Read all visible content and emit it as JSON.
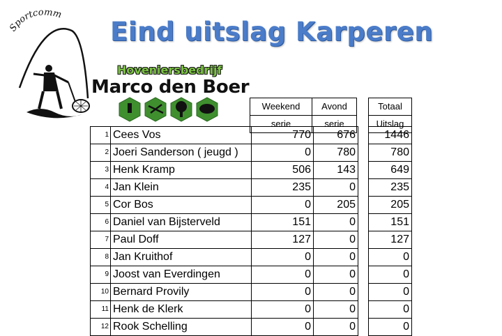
{
  "title": "Eind uitslag Karperen",
  "logo": {
    "club_text": "Sportcommissie",
    "sponsor_line1": "Hoveniersbedrijf",
    "sponsor_line2": "Marco den Boer"
  },
  "headers": {
    "weekend": [
      "Weekend",
      "serie"
    ],
    "avond": [
      "Avond",
      "serie"
    ],
    "totaal": [
      "Totaal",
      "Uitslag"
    ]
  },
  "rows": [
    {
      "rank": "1",
      "name": "Cees Vos",
      "weekend": "770",
      "avond": "676",
      "total": "1446"
    },
    {
      "rank": "2",
      "name": "Joeri Sanderson  ( jeugd )",
      "weekend": "0",
      "avond": "780",
      "total": "780"
    },
    {
      "rank": "3",
      "name": "Henk Kramp",
      "weekend": "506",
      "avond": "143",
      "total": "649"
    },
    {
      "rank": "4",
      "name": "Jan Klein",
      "weekend": "235",
      "avond": "0",
      "total": "235"
    },
    {
      "rank": "5",
      "name": "Cor Bos",
      "weekend": "0",
      "avond": "205",
      "total": "205"
    },
    {
      "rank": "6",
      "name": "Daniel van Bijsterveld",
      "weekend": "151",
      "avond": "0",
      "total": "151"
    },
    {
      "rank": "7",
      "name": "Paul Doff",
      "weekend": "127",
      "avond": "0",
      "total": "127"
    },
    {
      "rank": "8",
      "name": "Jan Kruithof",
      "weekend": "0",
      "avond": "0",
      "total": "0"
    },
    {
      "rank": "9",
      "name": "Joost van Everdingen",
      "weekend": "0",
      "avond": "0",
      "total": "0"
    },
    {
      "rank": "10",
      "name": "Bernard Provily",
      "weekend": "0",
      "avond": "0",
      "total": "0"
    },
    {
      "rank": "11",
      "name": "Henk de Klerk",
      "weekend": "0",
      "avond": "0",
      "total": "0"
    },
    {
      "rank": "12",
      "name": "Rook Schelling",
      "weekend": "0",
      "avond": "0",
      "total": "0"
    }
  ],
  "colors": {
    "title": "#4a7cc9",
    "sponsor_green": "#7cc443",
    "hex_green": "#3f8f2f"
  }
}
